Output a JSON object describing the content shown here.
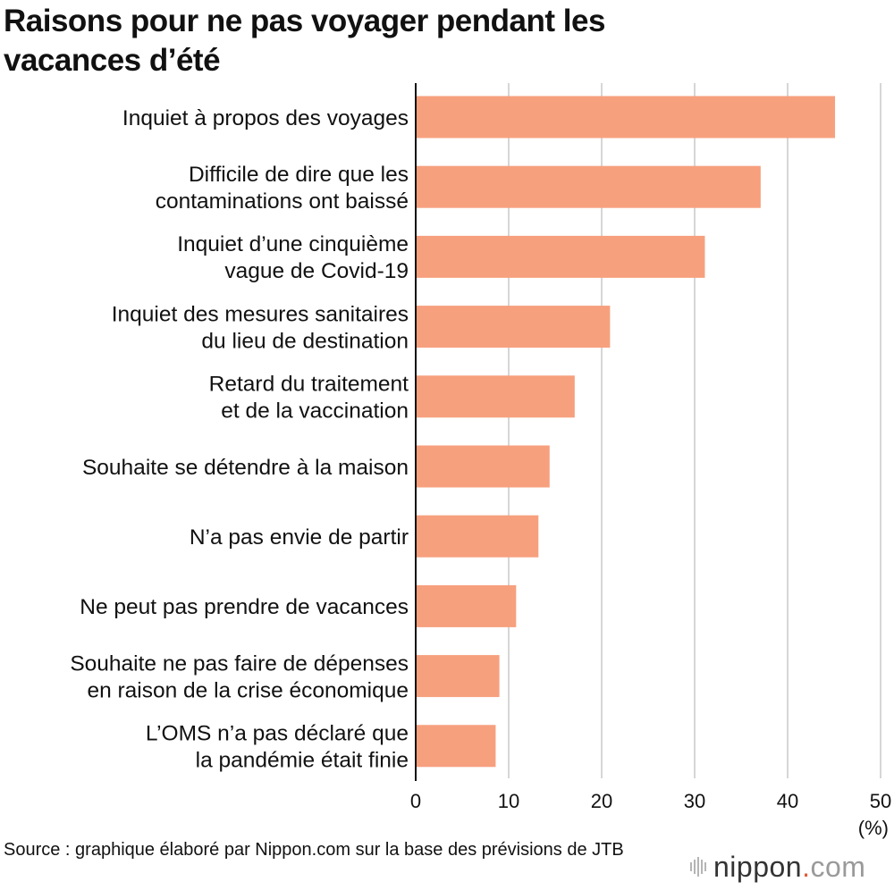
{
  "title_line1": "Raisons pour ne pas voyager pendant les",
  "title_line2": "vacances d’été",
  "chart_data": {
    "type": "bar",
    "orientation": "horizontal",
    "categories": [
      [
        "Inquiet à propos des voyages"
      ],
      [
        "Difficile de dire que les",
        "contaminations ont baissé"
      ],
      [
        "Inquiet d’une cinquième",
        "vague de Covid-19"
      ],
      [
        "Inquiet des mesures sanitaires",
        "du lieu de destination"
      ],
      [
        "Retard du traitement",
        "et de la vaccination"
      ],
      [
        "Souhaite se détendre à la maison"
      ],
      [
        "N’a pas envie de partir"
      ],
      [
        "Ne peut pas prendre de vacances"
      ],
      [
        "Souhaite ne pas faire de dépenses",
        "en raison de la crise économique"
      ],
      [
        "L’OMS n’a pas déclaré que",
        "la pandémie était finie"
      ]
    ],
    "values": [
      45.1,
      37.1,
      31.1,
      20.9,
      17.1,
      14.4,
      13.2,
      10.8,
      9.0,
      8.6
    ],
    "xlim": [
      0,
      50
    ],
    "xticks": [
      0,
      10,
      20,
      30,
      40,
      50
    ],
    "xunit": "(%)",
    "grid": true,
    "bar_color": "#f7a07e",
    "grid_color": "#c8c8c8",
    "axis_color": "#111111"
  },
  "source": "Source : graphique élaboré par Nippon.com sur la base des prévisions de JTB",
  "logo": {
    "name": "nippon",
    "dot": ".",
    "tld": "com"
  }
}
